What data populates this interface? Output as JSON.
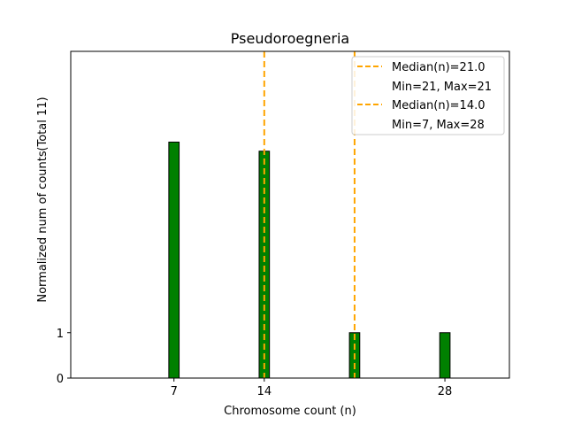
{
  "chart_data": {
    "type": "bar",
    "title": "Pseudoroegneria",
    "xlabel": "Chromosome count (n)",
    "ylabel": "Normalized num of counts",
    "ylabel_total": "(Total 11)",
    "xlim": [
      -1,
      33
    ],
    "ylim": [
      0,
      7.2
    ],
    "x_ticks": [
      {
        "value": 7,
        "label": "7"
      },
      {
        "value": 14,
        "label": "14"
      },
      {
        "value": 28,
        "label": "28"
      }
    ],
    "y_ticks": [
      {
        "value": 0,
        "label": "0"
      },
      {
        "value": 1,
        "label": "1"
      }
    ],
    "bar_width": 0.8,
    "bars": [
      {
        "x": 7,
        "value": 5.2
      },
      {
        "x": 14,
        "value": 5.0
      },
      {
        "x": 21,
        "value": 1.0
      },
      {
        "x": 28,
        "value": 1.0
      }
    ],
    "median_lines": [
      {
        "x": 21.0,
        "label": "Median(n)=21.0",
        "range_label": "Min=21, Max=21"
      },
      {
        "x": 14.0,
        "label": "Median(n)=14.0",
        "range_label": "Min=7, Max=28"
      }
    ],
    "legend_position": "top-right",
    "colors": {
      "bar_fill": "#008000",
      "bar_edge": "#000000",
      "median_line": "#FFA500"
    }
  }
}
